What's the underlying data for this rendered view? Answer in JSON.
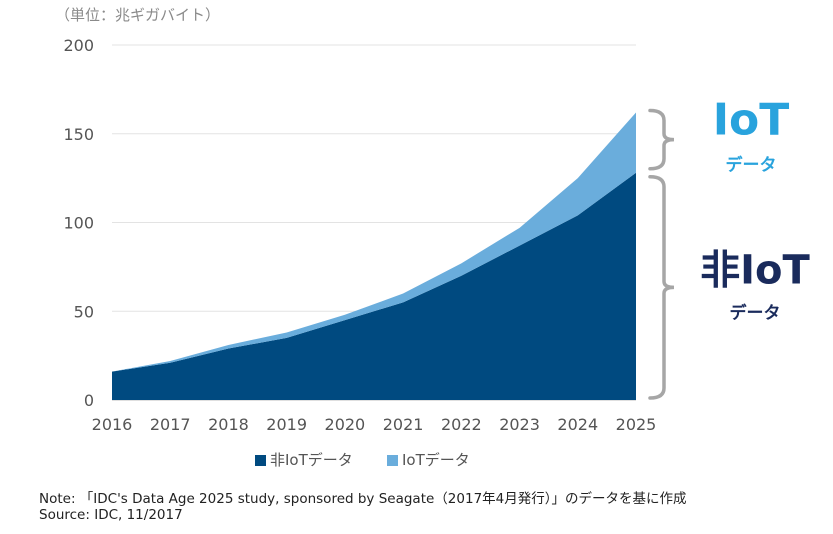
{
  "unit_label": "（単位：兆ギガバイト）",
  "chart_data": {
    "type": "area",
    "stacked": true,
    "title": "",
    "xlabel": "",
    "ylabel": "（単位：兆ギガバイト）",
    "ylim": [
      0,
      200
    ],
    "yticks": [
      0,
      50,
      100,
      150,
      200
    ],
    "grid": true,
    "x": [
      "2016",
      "2017",
      "2018",
      "2019",
      "2020",
      "2021",
      "2022",
      "2023",
      "2024",
      "2025"
    ],
    "series": [
      {
        "name": "非IoTデータ",
        "color": "#004a80",
        "values": [
          16,
          21,
          29,
          35,
          45,
          55,
          70,
          87,
          104,
          128
        ]
      },
      {
        "name": "IoTデータ",
        "color": "#6aaddc",
        "values": [
          0,
          1,
          2,
          3,
          3,
          5,
          7,
          10,
          21,
          34
        ]
      }
    ],
    "legend_position": "bottom-center",
    "annotations": [
      {
        "main": "IoT",
        "sub": "データ",
        "color": "#29a3dd",
        "series": "IoTデータ"
      },
      {
        "main": "非IoT",
        "sub": "データ",
        "color": "#1a2b5c",
        "series": "非IoTデータ"
      }
    ]
  },
  "notes": {
    "line1": "Note: 「IDC's Data Age 2025 study, sponsored by Seagate（2017年4月発行）」のデータを基に作成",
    "line2": "Source: IDC, 11/2017"
  }
}
